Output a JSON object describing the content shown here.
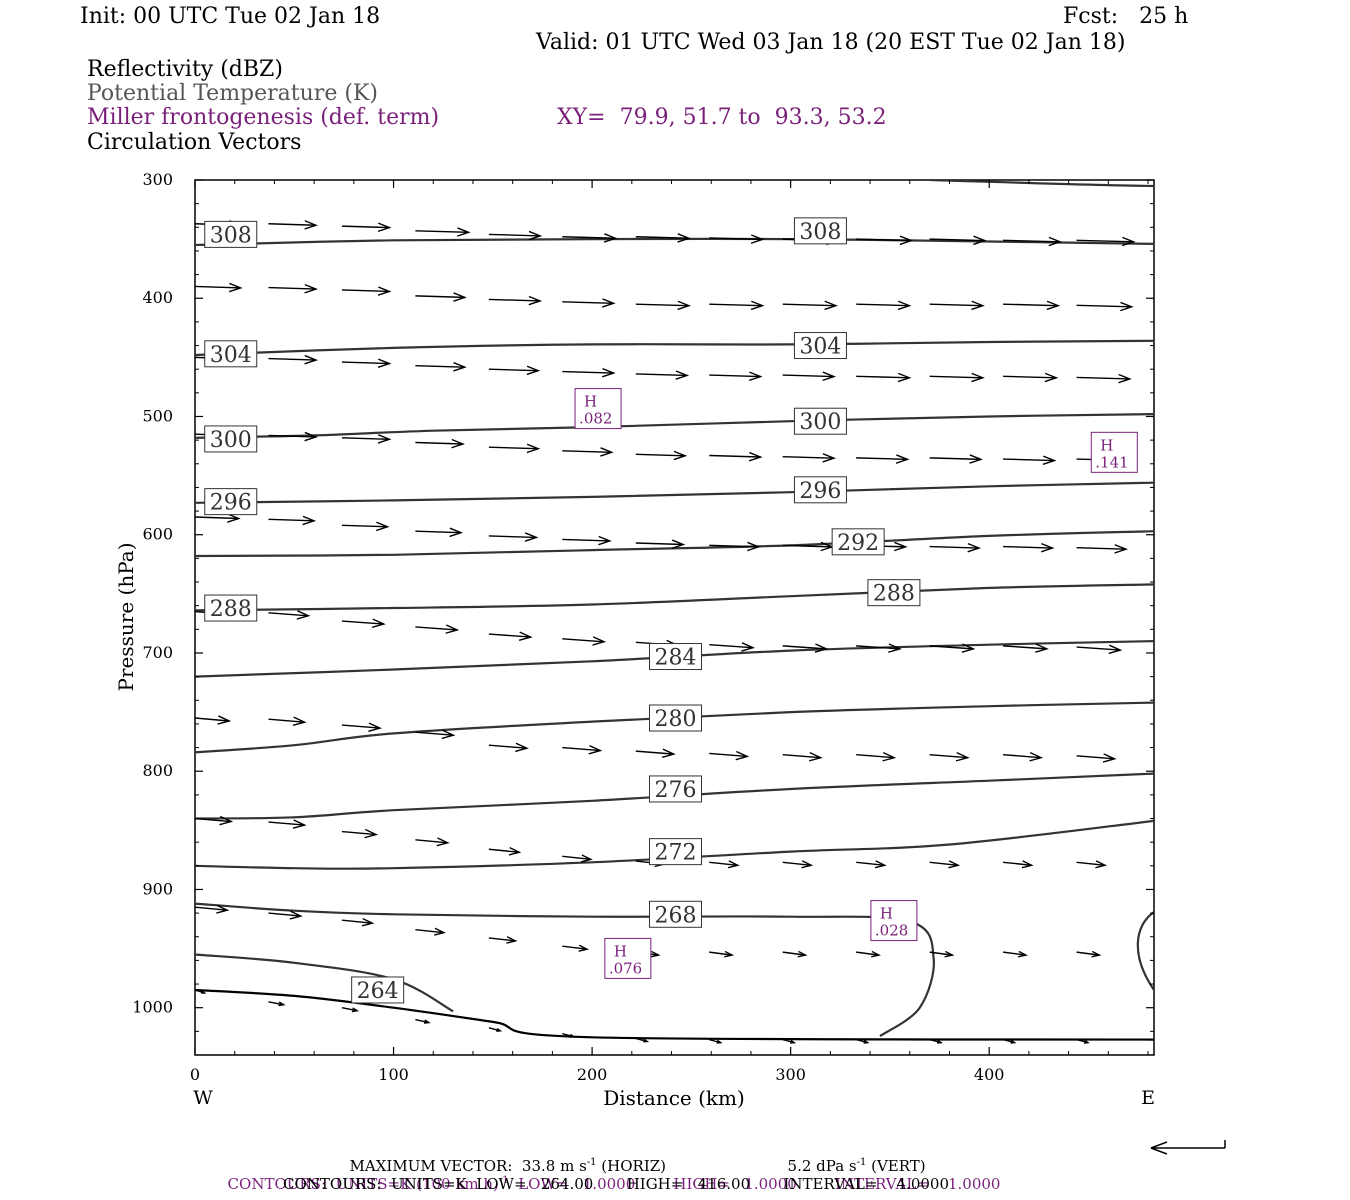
{
  "header": {
    "init": "Init: 00 UTC Tue 02 Jan 18",
    "fcst": "Fcst:   25 h",
    "valid": "Valid: 01 UTC Wed 03 Jan 18 (20 EST Tue 02 Jan 18)",
    "fields": [
      "Reflectivity (dBZ)",
      "Potential Temperature (K)",
      "Miller frontogenesis (def. term)",
      "Circulation Vectors"
    ],
    "xy": "XY=  79.9, 51.7 to  93.3, 53.2"
  },
  "colors": {
    "frontogenesis": "#7a1f7a",
    "theta": "#555555",
    "contour_line": "#333333",
    "vectors": "#000000"
  },
  "chart_data": {
    "type": "cross-section",
    "xlabel": "Distance (km)",
    "ylabel": "Pressure (hPa)",
    "xlim": [
      0,
      483
    ],
    "ylim": [
      1040,
      300
    ],
    "y_reversed": true,
    "xticks": [
      0,
      100,
      200,
      300,
      400
    ],
    "yticks": [
      300,
      400,
      500,
      600,
      700,
      800,
      900,
      1000
    ],
    "x_end_labels": {
      "left": "W",
      "right": "E"
    },
    "theta_contours": [
      {
        "value": 308,
        "points": [
          [
            0,
            355
          ],
          [
            100,
            351
          ],
          [
            200,
            350
          ],
          [
            300,
            350
          ],
          [
            400,
            352
          ],
          [
            483,
            354
          ]
        ],
        "label_at": [
          [
            18,
            346
          ],
          [
            315,
            343
          ]
        ]
      },
      {
        "value": 304,
        "points": [
          [
            0,
            448
          ],
          [
            100,
            442
          ],
          [
            200,
            439
          ],
          [
            300,
            439
          ],
          [
            400,
            437
          ],
          [
            483,
            436
          ]
        ],
        "label_at": [
          [
            18,
            447
          ],
          [
            315,
            440
          ]
        ]
      },
      {
        "value": 300,
        "points": [
          [
            0,
            518
          ],
          [
            60,
            516
          ],
          [
            120,
            512
          ],
          [
            200,
            509
          ],
          [
            300,
            504
          ],
          [
            400,
            500
          ],
          [
            483,
            498
          ]
        ],
        "label_at": [
          [
            18,
            519
          ],
          [
            315,
            504
          ]
        ]
      },
      {
        "value": 296,
        "points": [
          [
            0,
            573
          ],
          [
            100,
            571
          ],
          [
            200,
            568
          ],
          [
            300,
            564
          ],
          [
            400,
            559
          ],
          [
            483,
            556
          ]
        ],
        "label_at": [
          [
            18,
            572
          ],
          [
            315,
            562
          ]
        ]
      },
      {
        "value": 292,
        "points": [
          [
            0,
            618
          ],
          [
            100,
            617
          ],
          [
            200,
            613
          ],
          [
            300,
            609
          ],
          [
            400,
            601
          ],
          [
            483,
            597
          ]
        ],
        "label_at": [
          [
            334,
            606
          ]
        ]
      },
      {
        "value": 288,
        "points": [
          [
            0,
            664
          ],
          [
            100,
            662
          ],
          [
            200,
            659
          ],
          [
            300,
            652
          ],
          [
            400,
            645
          ],
          [
            483,
            642
          ]
        ],
        "label_at": [
          [
            18,
            662
          ],
          [
            352,
            649
          ]
        ]
      },
      {
        "value": 284,
        "points": [
          [
            0,
            720
          ],
          [
            100,
            714
          ],
          [
            200,
            707
          ],
          [
            300,
            698
          ],
          [
            400,
            693
          ],
          [
            483,
            690
          ]
        ],
        "label_at": [
          [
            242,
            703
          ]
        ]
      },
      {
        "value": 280,
        "points": [
          [
            0,
            784
          ],
          [
            50,
            778
          ],
          [
            100,
            768
          ],
          [
            200,
            758
          ],
          [
            300,
            750
          ],
          [
            400,
            745
          ],
          [
            483,
            742
          ]
        ],
        "label_at": [
          [
            242,
            755
          ]
        ]
      },
      {
        "value": 276,
        "points": [
          [
            0,
            840
          ],
          [
            50,
            839
          ],
          [
            100,
            833
          ],
          [
            200,
            825
          ],
          [
            300,
            815
          ],
          [
            400,
            808
          ],
          [
            483,
            802
          ]
        ],
        "label_at": [
          [
            242,
            815
          ]
        ]
      },
      {
        "value": 272,
        "points": [
          [
            0,
            880
          ],
          [
            50,
            882
          ],
          [
            100,
            882
          ],
          [
            200,
            877
          ],
          [
            300,
            868
          ],
          [
            380,
            862
          ],
          [
            483,
            842
          ]
        ],
        "label_at": [
          [
            242,
            868
          ]
        ]
      },
      {
        "value": 268,
        "points": [
          [
            0,
            912
          ],
          [
            50,
            918
          ],
          [
            100,
            921
          ],
          [
            200,
            923
          ],
          [
            300,
            923
          ],
          [
            360,
            927
          ],
          [
            372,
            958
          ],
          [
            365,
            1000
          ],
          [
            345,
            1024
          ]
        ],
        "label_at": [
          [
            242,
            921
          ]
        ]
      },
      {
        "value": 264,
        "points": [
          [
            0,
            955
          ],
          [
            50,
            962
          ],
          [
            100,
            976
          ],
          [
            130,
            1003
          ]
        ],
        "label_at": [
          [
            92,
            985
          ]
        ]
      }
    ],
    "surface_line": [
      [
        0,
        985
      ],
      [
        50,
        990
      ],
      [
        100,
        1000
      ],
      [
        150,
        1012
      ],
      [
        200,
        1025
      ],
      [
        483,
        1027
      ]
    ],
    "frontogenesis_maxima": [
      {
        "label": "H",
        "value": ".082",
        "x": 203,
        "p": 495
      },
      {
        "label": "H",
        "value": ".141",
        "x": 463,
        "p": 532
      },
      {
        "label": "H",
        "value": ".028",
        "x": 352,
        "p": 928
      },
      {
        "label": "H",
        "value": ".076",
        "x": 218,
        "p": 960
      }
    ],
    "vector_rows": [
      {
        "p": 340,
        "vectors": [
          [
            0,
            337,
            24
          ],
          [
            37,
            337,
            25
          ],
          [
            74,
            339,
            25
          ],
          [
            111,
            343,
            28
          ],
          [
            148,
            346,
            27
          ],
          [
            185,
            348,
            28
          ],
          [
            222,
            348,
            28
          ],
          [
            259,
            349,
            28
          ],
          [
            296,
            350,
            29
          ],
          [
            333,
            350,
            29
          ],
          [
            370,
            350,
            29
          ],
          [
            407,
            351,
            30
          ],
          [
            444,
            351,
            30
          ]
        ]
      },
      {
        "p": 390,
        "vectors": [
          [
            0,
            390,
            24
          ],
          [
            37,
            391,
            25
          ],
          [
            74,
            393,
            25
          ],
          [
            111,
            398,
            26
          ],
          [
            148,
            401,
            27
          ],
          [
            185,
            403,
            27
          ],
          [
            222,
            405,
            28
          ],
          [
            259,
            405,
            28
          ],
          [
            296,
            405,
            28
          ],
          [
            333,
            405,
            28
          ],
          [
            370,
            405,
            28
          ],
          [
            407,
            405,
            29
          ],
          [
            444,
            406,
            29
          ]
        ]
      },
      {
        "p": 450,
        "vectors": [
          [
            0,
            450,
            24
          ],
          [
            37,
            451,
            25
          ],
          [
            74,
            454,
            25
          ],
          [
            111,
            457,
            26
          ],
          [
            148,
            460,
            26
          ],
          [
            185,
            462,
            27
          ],
          [
            222,
            464,
            27
          ],
          [
            259,
            465,
            27
          ],
          [
            296,
            465,
            27
          ],
          [
            333,
            466,
            28
          ],
          [
            370,
            466,
            28
          ],
          [
            407,
            466,
            28
          ],
          [
            444,
            467,
            28
          ]
        ]
      },
      {
        "p": 515,
        "vectors": [
          [
            0,
            515,
            24
          ],
          [
            37,
            516,
            25
          ],
          [
            74,
            518,
            25
          ],
          [
            111,
            522,
            25
          ],
          [
            148,
            526,
            26
          ],
          [
            185,
            529,
            26
          ],
          [
            222,
            532,
            26
          ],
          [
            259,
            533,
            27
          ],
          [
            296,
            534,
            27
          ],
          [
            333,
            535,
            27
          ],
          [
            370,
            535,
            27
          ],
          [
            407,
            536,
            27
          ],
          [
            444,
            536,
            28
          ]
        ]
      },
      {
        "p": 585,
        "vectors": [
          [
            0,
            585,
            23
          ],
          [
            37,
            587,
            24
          ],
          [
            74,
            592,
            24
          ],
          [
            111,
            597,
            24
          ],
          [
            148,
            601,
            25
          ],
          [
            185,
            604,
            25
          ],
          [
            222,
            607,
            25
          ],
          [
            259,
            609,
            26
          ],
          [
            296,
            609,
            26
          ],
          [
            333,
            609,
            26
          ],
          [
            370,
            610,
            26
          ],
          [
            407,
            610,
            26
          ],
          [
            444,
            611,
            26
          ]
        ]
      },
      {
        "p": 665,
        "vectors": [
          [
            0,
            665,
            20
          ],
          [
            37,
            666,
            21
          ],
          [
            74,
            673,
            22
          ],
          [
            111,
            678,
            22
          ],
          [
            148,
            684,
            22
          ],
          [
            185,
            688,
            22
          ],
          [
            222,
            691,
            22
          ],
          [
            259,
            693,
            23
          ],
          [
            296,
            694,
            23
          ],
          [
            333,
            694,
            23
          ],
          [
            370,
            694,
            23
          ],
          [
            407,
            694,
            23
          ],
          [
            444,
            695,
            23
          ]
        ]
      },
      {
        "p": 755,
        "vectors": [
          [
            0,
            755,
            18
          ],
          [
            37,
            756,
            19
          ],
          [
            74,
            761,
            20
          ],
          [
            111,
            767,
            20
          ],
          [
            148,
            778,
            20
          ],
          [
            185,
            780,
            20
          ],
          [
            222,
            783,
            20
          ],
          [
            259,
            785,
            20
          ],
          [
            296,
            786,
            20
          ],
          [
            333,
            786,
            20
          ],
          [
            370,
            786,
            20
          ],
          [
            407,
            786,
            20
          ],
          [
            444,
            787,
            20
          ]
        ]
      },
      {
        "p": 840,
        "vectors": [
          [
            0,
            840,
            19
          ],
          [
            37,
            843,
            19
          ],
          [
            74,
            851,
            18
          ],
          [
            111,
            858,
            17
          ],
          [
            148,
            866,
            16
          ],
          [
            185,
            872,
            15
          ],
          [
            222,
            876,
            15
          ],
          [
            259,
            877,
            15
          ],
          [
            296,
            877,
            15
          ],
          [
            333,
            877,
            15
          ],
          [
            370,
            877,
            15
          ],
          [
            407,
            877,
            15
          ],
          [
            444,
            877,
            15
          ]
        ]
      },
      {
        "p": 915,
        "vectors": [
          [
            0,
            915,
            17
          ],
          [
            37,
            920,
            17
          ],
          [
            74,
            926,
            16
          ],
          [
            111,
            934,
            15
          ],
          [
            148,
            941,
            14
          ],
          [
            185,
            948,
            13
          ],
          [
            222,
            953,
            12
          ],
          [
            259,
            953,
            12
          ],
          [
            296,
            953,
            12
          ],
          [
            333,
            953,
            12
          ],
          [
            370,
            953,
            12
          ],
          [
            407,
            953,
            12
          ],
          [
            444,
            953,
            12
          ]
        ]
      },
      {
        "p": 985,
        "vectors": [
          [
            0,
            985,
            5
          ],
          [
            37,
            995,
            8
          ],
          [
            74,
            1000,
            8
          ],
          [
            111,
            1010,
            7
          ],
          [
            148,
            1017,
            6
          ],
          [
            185,
            1022,
            6
          ],
          [
            222,
            1026,
            6
          ],
          [
            259,
            1027,
            6
          ],
          [
            296,
            1027,
            6
          ],
          [
            333,
            1027,
            6
          ],
          [
            370,
            1027,
            6
          ],
          [
            407,
            1027,
            6
          ],
          [
            444,
            1027,
            6
          ]
        ]
      }
    ]
  },
  "footer": {
    "max_vector": "MAXIMUM VECTOR:  33.8 m s",
    "max_vector_sup": "-1",
    "max_vector_horiz": " (HORIZ)",
    "vert": "5.2 dPa s",
    "vert_sup": "-1",
    "vert_tail": " (VERT)",
    "contours1_a": "CONTOURS:  UNITS=K (100 km h)",
    "contours1_sup": "-1",
    "contours1_b": "  LOW=   1.0000        HIGH=   1.0000        INTERVAL=    1.0000",
    "contours2": "CONTOURS:  UNITS=K  LOW=   264.00       HIGH=   416.00       INTERVAL=    4.0000"
  }
}
